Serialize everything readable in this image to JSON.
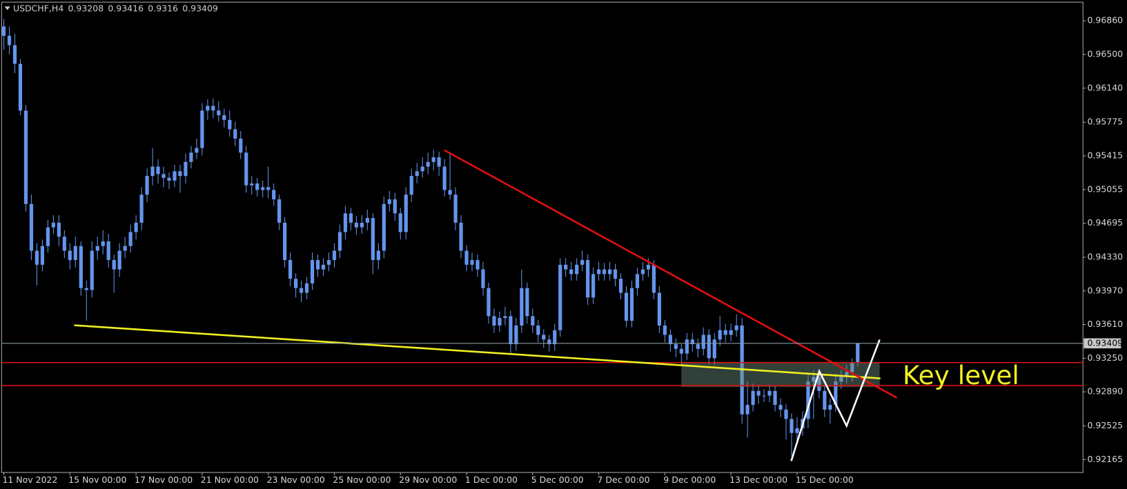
{
  "chart_data": {
    "type": "candlestick",
    "symbol": "USDCHF,H4",
    "annotation": "Key level",
    "color": "#6495ED",
    "xlim": [
      -0.4,
      195.9
    ],
    "ylim": [
      0.92027,
      0.9706
    ],
    "xticks": [
      {
        "value": 0,
        "label": "11 Nov 2022"
      },
      {
        "value": 12,
        "label": "15 Nov 00:00"
      },
      {
        "value": 24,
        "label": "17 Nov 00:00"
      },
      {
        "value": 36,
        "label": "21 Nov 00:00"
      },
      {
        "value": 48,
        "label": "23 Nov 00:00"
      },
      {
        "value": 60,
        "label": "25 Nov 00:00"
      },
      {
        "value": 72,
        "label": "29 Nov 00:00"
      },
      {
        "value": 84,
        "label": "1 Dec 00:00"
      },
      {
        "value": 96,
        "label": "5 Dec 00:00"
      },
      {
        "value": 108,
        "label": "7 Dec 00:00"
      },
      {
        "value": 120,
        "label": "9 Dec 00:00"
      },
      {
        "value": 132,
        "label": "13 Dec 00:00"
      },
      {
        "value": 144,
        "label": "15 Dec 00:00"
      }
    ],
    "yticks": [
      {
        "value": 0.9686,
        "label": "0.96860"
      },
      {
        "value": 0.965,
        "label": "0.96500"
      },
      {
        "value": 0.9614,
        "label": "0.96140"
      },
      {
        "value": 0.95775,
        "label": "0.95775"
      },
      {
        "value": 0.95415,
        "label": "0.95415"
      },
      {
        "value": 0.95055,
        "label": "0.95055"
      },
      {
        "value": 0.94695,
        "label": "0.94695"
      },
      {
        "value": 0.9433,
        "label": "0.94330"
      },
      {
        "value": 0.9397,
        "label": "0.93970"
      },
      {
        "value": 0.9361,
        "label": "0.93610"
      },
      {
        "value": 0.9325,
        "label": "0.93250"
      },
      {
        "value": 0.9289,
        "label": "0.92890"
      },
      {
        "value": 0.92525,
        "label": "0.92525"
      },
      {
        "value": 0.92165,
        "label": "0.92165"
      }
    ],
    "ohlc": [
      [
        0.968,
        0.9688,
        0.9655,
        0.967
      ],
      [
        0.967,
        0.968,
        0.965,
        0.966
      ],
      [
        0.966,
        0.9672,
        0.963,
        0.964
      ],
      [
        0.964,
        0.9645,
        0.9585,
        0.959
      ],
      [
        0.959,
        0.9596,
        0.9482,
        0.949
      ],
      [
        0.949,
        0.95,
        0.943,
        0.944
      ],
      [
        0.944,
        0.9448,
        0.9403,
        0.9425
      ],
      [
        0.9425,
        0.9452,
        0.9418,
        0.9445
      ],
      [
        0.9445,
        0.9473,
        0.9438,
        0.9465
      ],
      [
        0.9465,
        0.9478,
        0.9458,
        0.947
      ],
      [
        0.947,
        0.9478,
        0.9445,
        0.9455
      ],
      [
        0.9455,
        0.9462,
        0.9432,
        0.944
      ],
      [
        0.944,
        0.9448,
        0.942,
        0.943
      ],
      [
        0.943,
        0.9455,
        0.9422,
        0.9445
      ],
      [
        0.9445,
        0.945,
        0.9392,
        0.94
      ],
      [
        0.94,
        0.9408,
        0.9365,
        0.9398
      ],
      [
        0.9398,
        0.945,
        0.939,
        0.944
      ],
      [
        0.944,
        0.9455,
        0.943,
        0.9445
      ],
      [
        0.9445,
        0.9462,
        0.9436,
        0.945
      ],
      [
        0.945,
        0.9458,
        0.9422,
        0.943
      ],
      [
        0.943,
        0.9436,
        0.9395,
        0.942
      ],
      [
        0.942,
        0.9448,
        0.9412,
        0.944
      ],
      [
        0.944,
        0.9455,
        0.9432,
        0.9445
      ],
      [
        0.9445,
        0.9468,
        0.9438,
        0.946
      ],
      [
        0.946,
        0.9478,
        0.9452,
        0.947
      ],
      [
        0.947,
        0.9508,
        0.9462,
        0.95
      ],
      [
        0.95,
        0.9528,
        0.9492,
        0.952
      ],
      [
        0.952,
        0.955,
        0.951,
        0.953
      ],
      [
        0.953,
        0.9538,
        0.9512,
        0.9522
      ],
      [
        0.9522,
        0.953,
        0.9508,
        0.9518
      ],
      [
        0.9518,
        0.9524,
        0.9506,
        0.9515
      ],
      [
        0.9515,
        0.9532,
        0.9508,
        0.9525
      ],
      [
        0.9525,
        0.9532,
        0.9502,
        0.952
      ],
      [
        0.952,
        0.9544,
        0.9512,
        0.9535
      ],
      [
        0.9535,
        0.9552,
        0.9528,
        0.9545
      ],
      [
        0.9545,
        0.956,
        0.9538,
        0.955
      ],
      [
        0.955,
        0.9598,
        0.9542,
        0.959
      ],
      [
        0.959,
        0.9602,
        0.958,
        0.9595
      ],
      [
        0.9595,
        0.9603,
        0.9582,
        0.959
      ],
      [
        0.959,
        0.96,
        0.9578,
        0.9585
      ],
      [
        0.9585,
        0.9592,
        0.9572,
        0.958
      ],
      [
        0.958,
        0.959,
        0.9562,
        0.957
      ],
      [
        0.957,
        0.9578,
        0.9552,
        0.956
      ],
      [
        0.956,
        0.9568,
        0.9538,
        0.9545
      ],
      [
        0.9545,
        0.9552,
        0.9502,
        0.951
      ],
      [
        0.951,
        0.952,
        0.95,
        0.9512
      ],
      [
        0.9512,
        0.9518,
        0.9498,
        0.9505
      ],
      [
        0.9505,
        0.9515,
        0.9497,
        0.9508
      ],
      [
        0.9508,
        0.953,
        0.9496,
        0.9505
      ],
      [
        0.9505,
        0.9512,
        0.9488,
        0.9495
      ],
      [
        0.9495,
        0.95,
        0.9462,
        0.947
      ],
      [
        0.947,
        0.9476,
        0.9422,
        0.943
      ],
      [
        0.943,
        0.9438,
        0.9402,
        0.941
      ],
      [
        0.941,
        0.9416,
        0.939,
        0.94
      ],
      [
        0.94,
        0.9408,
        0.9385,
        0.9395
      ],
      [
        0.9395,
        0.9412,
        0.9388,
        0.9405
      ],
      [
        0.9405,
        0.9438,
        0.9398,
        0.943
      ],
      [
        0.943,
        0.9436,
        0.9412,
        0.942
      ],
      [
        0.942,
        0.9432,
        0.9413,
        0.9425
      ],
      [
        0.9425,
        0.9438,
        0.9418,
        0.943
      ],
      [
        0.943,
        0.9448,
        0.9422,
        0.944
      ],
      [
        0.944,
        0.9468,
        0.9432,
        0.946
      ],
      [
        0.946,
        0.9488,
        0.9452,
        0.948
      ],
      [
        0.948,
        0.9486,
        0.9462,
        0.947
      ],
      [
        0.947,
        0.9477,
        0.9457,
        0.9465
      ],
      [
        0.9465,
        0.9478,
        0.9458,
        0.947
      ],
      [
        0.947,
        0.9484,
        0.9462,
        0.9475
      ],
      [
        0.9475,
        0.948,
        0.9415,
        0.943
      ],
      [
        0.943,
        0.9448,
        0.942,
        0.944
      ],
      [
        0.944,
        0.9498,
        0.9432,
        0.949
      ],
      [
        0.949,
        0.9504,
        0.9482,
        0.9495
      ],
      [
        0.9495,
        0.9502,
        0.9472,
        0.948
      ],
      [
        0.948,
        0.9486,
        0.9452,
        0.946
      ],
      [
        0.946,
        0.9508,
        0.9452,
        0.95
      ],
      [
        0.95,
        0.9528,
        0.9492,
        0.952
      ],
      [
        0.952,
        0.9534,
        0.9512,
        0.9525
      ],
      [
        0.9525,
        0.954,
        0.9518,
        0.953
      ],
      [
        0.953,
        0.9545,
        0.9522,
        0.9535
      ],
      [
        0.9535,
        0.9548,
        0.9526,
        0.954
      ],
      [
        0.954,
        0.9546,
        0.952,
        0.953
      ],
      [
        0.953,
        0.9538,
        0.9498,
        0.9505
      ],
      [
        0.9505,
        0.9545,
        0.9495,
        0.95
      ],
      [
        0.95,
        0.9508,
        0.9462,
        0.947
      ],
      [
        0.947,
        0.9478,
        0.9432,
        0.944
      ],
      [
        0.944,
        0.9446,
        0.9418,
        0.9425
      ],
      [
        0.9425,
        0.9438,
        0.9418,
        0.943
      ],
      [
        0.943,
        0.9436,
        0.9412,
        0.942
      ],
      [
        0.942,
        0.9428,
        0.9392,
        0.94
      ],
      [
        0.94,
        0.9406,
        0.9362,
        0.937
      ],
      [
        0.937,
        0.9378,
        0.9352,
        0.936
      ],
      [
        0.936,
        0.9375,
        0.9353,
        0.9368
      ],
      [
        0.9368,
        0.938,
        0.936,
        0.937
      ],
      [
        0.937,
        0.9376,
        0.933,
        0.934
      ],
      [
        0.934,
        0.9368,
        0.9333,
        0.936
      ],
      [
        0.936,
        0.942,
        0.9352,
        0.94
      ],
      [
        0.94,
        0.9406,
        0.9362,
        0.937
      ],
      [
        0.937,
        0.9378,
        0.9352,
        0.936
      ],
      [
        0.936,
        0.9366,
        0.9342,
        0.935
      ],
      [
        0.935,
        0.9356,
        0.9336,
        0.9345
      ],
      [
        0.9345,
        0.935,
        0.9332,
        0.934
      ],
      [
        0.934,
        0.9362,
        0.9333,
        0.9355
      ],
      [
        0.9355,
        0.9432,
        0.9348,
        0.9425
      ],
      [
        0.9425,
        0.9432,
        0.9412,
        0.942
      ],
      [
        0.942,
        0.9428,
        0.9408,
        0.9415
      ],
      [
        0.9415,
        0.9432,
        0.9408,
        0.9425
      ],
      [
        0.9425,
        0.944,
        0.9418,
        0.943
      ],
      [
        0.943,
        0.9436,
        0.9382,
        0.939
      ],
      [
        0.939,
        0.9422,
        0.9383,
        0.9415
      ],
      [
        0.9415,
        0.9428,
        0.9408,
        0.942
      ],
      [
        0.942,
        0.9427,
        0.9408,
        0.9415
      ],
      [
        0.9415,
        0.9428,
        0.9408,
        0.942
      ],
      [
        0.942,
        0.9426,
        0.9402,
        0.941
      ],
      [
        0.941,
        0.9416,
        0.9388,
        0.9395
      ],
      [
        0.9395,
        0.9402,
        0.9358,
        0.9365
      ],
      [
        0.9365,
        0.9408,
        0.9358,
        0.94
      ],
      [
        0.94,
        0.9422,
        0.9392,
        0.9415
      ],
      [
        0.9415,
        0.9428,
        0.9408,
        0.942
      ],
      [
        0.942,
        0.9432,
        0.9412,
        0.9425
      ],
      [
        0.9425,
        0.943,
        0.9388,
        0.9395
      ],
      [
        0.9395,
        0.9402,
        0.9352,
        0.936
      ],
      [
        0.936,
        0.9366,
        0.9342,
        0.935
      ],
      [
        0.935,
        0.9356,
        0.9332,
        0.934
      ],
      [
        0.934,
        0.9346,
        0.9326,
        0.9335
      ],
      [
        0.9335,
        0.934,
        0.9318,
        0.933
      ],
      [
        0.933,
        0.9352,
        0.9323,
        0.9345
      ],
      [
        0.9345,
        0.9352,
        0.9332,
        0.934
      ],
      [
        0.934,
        0.9346,
        0.9326,
        0.9335
      ],
      [
        0.9335,
        0.9358,
        0.9328,
        0.935
      ],
      [
        0.935,
        0.9356,
        0.9318,
        0.9325
      ],
      [
        0.9325,
        0.9352,
        0.9318,
        0.9345
      ],
      [
        0.9345,
        0.937,
        0.9338,
        0.9355
      ],
      [
        0.9355,
        0.9362,
        0.9342,
        0.935
      ],
      [
        0.935,
        0.9362,
        0.9343,
        0.9355
      ],
      [
        0.9355,
        0.9372,
        0.9348,
        0.936
      ],
      [
        0.936,
        0.9368,
        0.9255,
        0.9265
      ],
      [
        0.9265,
        0.93,
        0.924,
        0.9275
      ],
      [
        0.9275,
        0.9298,
        0.9268,
        0.929
      ],
      [
        0.929,
        0.9296,
        0.9276,
        0.9285
      ],
      [
        0.9285,
        0.9292,
        0.9278,
        0.9285
      ],
      [
        0.9285,
        0.9297,
        0.9278,
        0.929
      ],
      [
        0.929,
        0.9296,
        0.9268,
        0.9275
      ],
      [
        0.9275,
        0.9282,
        0.9262,
        0.927
      ],
      [
        0.927,
        0.9276,
        0.9238,
        0.926
      ],
      [
        0.926,
        0.9266,
        0.922,
        0.9245
      ],
      [
        0.9245,
        0.9262,
        0.9236,
        0.925
      ],
      [
        0.925,
        0.9268,
        0.9242,
        0.926
      ],
      [
        0.926,
        0.9308,
        0.925,
        0.93
      ],
      [
        0.93,
        0.9312,
        0.926,
        0.9305
      ],
      [
        0.9305,
        0.9312,
        0.9282,
        0.929
      ],
      [
        0.929,
        0.9296,
        0.9262,
        0.927
      ],
      [
        0.927,
        0.9282,
        0.9255,
        0.9275
      ],
      [
        0.9275,
        0.9308,
        0.9268,
        0.93
      ],
      [
        0.93,
        0.9312,
        0.9292,
        0.9305
      ],
      [
        0.9305,
        0.9318,
        0.9298,
        0.931
      ],
      [
        0.931,
        0.9325,
        0.93,
        0.93208
      ],
      [
        0.93208,
        0.93416,
        0.9316,
        0.93409
      ]
    ]
  }
}
